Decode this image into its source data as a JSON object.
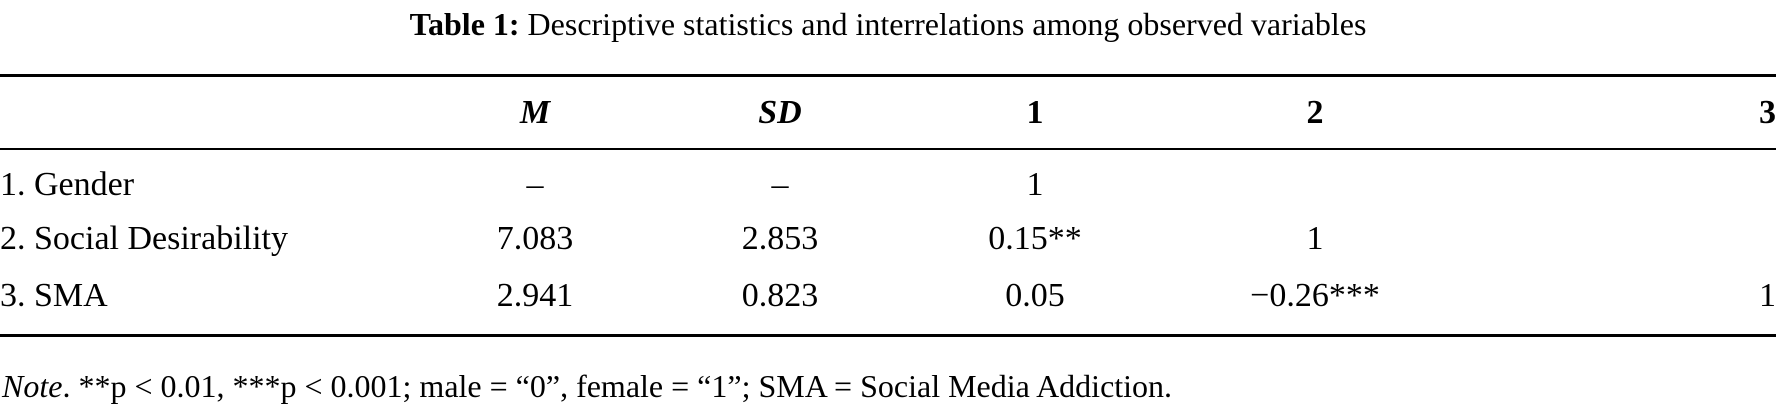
{
  "caption": {
    "label": "Table 1:",
    "text": "Descriptive statistics and interrelations among observed variables"
  },
  "table": {
    "headers": [
      "",
      "M",
      "SD",
      "1",
      "2",
      "3"
    ],
    "rows": [
      {
        "label": "1. Gender",
        "m": "–",
        "sd": "–",
        "c1": "1",
        "c2": "",
        "c3": ""
      },
      {
        "label": "2. Social Desirability",
        "m": "7.083",
        "sd": "2.853",
        "c1": "0.15**",
        "c2": "1",
        "c3": ""
      },
      {
        "label": "3. SMA",
        "m": "2.941",
        "sd": "0.823",
        "c1": "0.05",
        "c2": "−0.26***",
        "c3": "1"
      }
    ]
  },
  "note": {
    "label": "Note",
    "text": ". **p < 0.01, ***p < 0.001; male = “0”, female = “1”; SMA = Social Media Addiction."
  }
}
